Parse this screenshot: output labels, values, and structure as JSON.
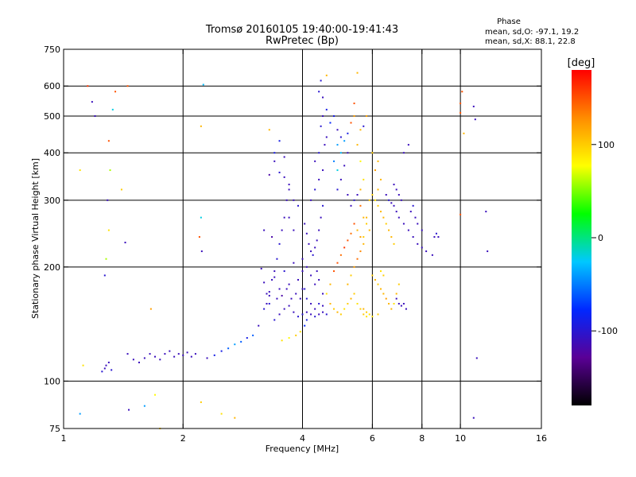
{
  "chart_data": {
    "type": "scatter",
    "title": "Tromsø 20160105 19:40:00-19:41:43",
    "subtitle": "RwPretec (Bp)",
    "xlabel": "Frequency [MHz]",
    "ylabel": "Stationary phase Virtual Height [km]",
    "x_scale": "log",
    "y_scale": "log",
    "xlim": [
      1,
      16
    ],
    "ylim": [
      75,
      750
    ],
    "x_ticks": [
      1,
      2,
      4,
      6,
      8,
      10,
      16
    ],
    "y_ticks": [
      75,
      100,
      200,
      300,
      400,
      500,
      600,
      750
    ],
    "x_gridlines": [
      2,
      4,
      6,
      8,
      10
    ],
    "y_gridlines": [
      100,
      200,
      300,
      400,
      500,
      600
    ],
    "grid": true,
    "stats_title": "Phase",
    "stats": [
      "mean, sd,O: -97.1, 19.2",
      "mean, sd,X:  88.1, 22.8"
    ],
    "colorbar": {
      "label": "[deg]",
      "range": [
        -180,
        180
      ],
      "ticks": [
        100,
        0,
        -100
      ],
      "colormap": "rainbow",
      "colors": [
        "#000000",
        "#5a0096",
        "#0028ff",
        "#00c8ff",
        "#00ff00",
        "#ffff00",
        "#ff8c00",
        "#ff0000"
      ]
    },
    "point_columns": [
      "freq_MHz",
      "height_km",
      "phase_deg"
    ],
    "points": [
      [
        1.1,
        82,
        -40
      ],
      [
        1.12,
        110,
        90
      ],
      [
        1.1,
        360,
        90
      ],
      [
        1.18,
        545,
        -110
      ],
      [
        1.2,
        500,
        -110
      ],
      [
        1.15,
        600,
        160
      ],
      [
        1.25,
        106,
        -100
      ],
      [
        1.27,
        108,
        -110
      ],
      [
        1.28,
        110,
        -110
      ],
      [
        1.3,
        112,
        -110
      ],
      [
        1.32,
        107,
        -100
      ],
      [
        1.27,
        190,
        -100
      ],
      [
        1.28,
        210,
        60
      ],
      [
        1.3,
        250,
        90
      ],
      [
        1.29,
        300,
        -110
      ],
      [
        1.31,
        360,
        60
      ],
      [
        1.3,
        430,
        150
      ],
      [
        1.33,
        520,
        -20
      ],
      [
        1.35,
        580,
        150
      ],
      [
        1.45,
        600,
        150
      ],
      [
        1.4,
        320,
        100
      ],
      [
        1.43,
        232,
        -110
      ],
      [
        1.45,
        118,
        -110
      ],
      [
        1.46,
        84,
        -110
      ],
      [
        1.5,
        114,
        -110
      ],
      [
        1.55,
        112,
        -110
      ],
      [
        1.6,
        115,
        -110
      ],
      [
        1.65,
        118,
        -110
      ],
      [
        1.7,
        116,
        -110
      ],
      [
        1.75,
        114,
        -110
      ],
      [
        1.8,
        118,
        -110
      ],
      [
        1.85,
        120,
        -110
      ],
      [
        1.9,
        116,
        -110
      ],
      [
        1.95,
        118,
        -110
      ],
      [
        2.0,
        117,
        -110
      ],
      [
        2.05,
        119,
        -110
      ],
      [
        2.1,
        116,
        -110
      ],
      [
        2.15,
        118,
        -110
      ],
      [
        2.25,
        605,
        -30
      ],
      [
        2.22,
        470,
        110
      ],
      [
        2.22,
        270,
        -20
      ],
      [
        2.2,
        240,
        150
      ],
      [
        2.23,
        220,
        -110
      ],
      [
        2.22,
        88,
        100
      ],
      [
        2.3,
        115,
        -110
      ],
      [
        2.4,
        117,
        -90
      ],
      [
        2.5,
        120,
        -90
      ],
      [
        2.6,
        122,
        -60
      ],
      [
        2.7,
        125,
        -40
      ],
      [
        2.8,
        127,
        -60
      ],
      [
        2.9,
        130,
        -90
      ],
      [
        3.0,
        132,
        -60
      ],
      [
        1.6,
        86,
        -40
      ],
      [
        1.7,
        92,
        80
      ],
      [
        1.75,
        75,
        100
      ],
      [
        1.66,
        155,
        120
      ],
      [
        2.5,
        82,
        90
      ],
      [
        2.7,
        80,
        110
      ],
      [
        3.1,
        140,
        -110
      ],
      [
        3.2,
        155,
        -100
      ],
      [
        3.25,
        160,
        -110
      ],
      [
        3.3,
        172,
        -110
      ],
      [
        3.35,
        185,
        -110
      ],
      [
        3.4,
        195,
        -110
      ],
      [
        3.45,
        210,
        -100
      ],
      [
        3.5,
        230,
        -100
      ],
      [
        3.55,
        250,
        -110
      ],
      [
        3.6,
        270,
        -110
      ],
      [
        3.65,
        300,
        -110
      ],
      [
        3.7,
        330,
        -110
      ],
      [
        3.3,
        350,
        -120
      ],
      [
        3.4,
        380,
        -110
      ],
      [
        3.5,
        355,
        -100
      ],
      [
        3.6,
        345,
        -110
      ],
      [
        3.7,
        320,
        -110
      ],
      [
        3.8,
        300,
        -110
      ],
      [
        3.9,
        290,
        -100
      ],
      [
        3.7,
        270,
        -110
      ],
      [
        3.8,
        250,
        -110
      ],
      [
        3.3,
        460,
        110
      ],
      [
        3.5,
        430,
        -90
      ],
      [
        3.6,
        390,
        -110
      ],
      [
        3.4,
        400,
        -90
      ],
      [
        3.2,
        250,
        -110
      ],
      [
        3.35,
        240,
        -120
      ],
      [
        3.4,
        145,
        -100
      ],
      [
        3.5,
        150,
        -110
      ],
      [
        3.6,
        155,
        -110
      ],
      [
        3.7,
        158,
        -110
      ],
      [
        3.8,
        152,
        -110
      ],
      [
        3.9,
        148,
        -100
      ],
      [
        4.0,
        150,
        -100
      ],
      [
        3.3,
        168,
        -110
      ],
      [
        3.5,
        175,
        -110
      ],
      [
        3.7,
        180,
        -110
      ],
      [
        3.9,
        185,
        -110
      ],
      [
        3.4,
        188,
        -110
      ],
      [
        3.6,
        195,
        -100
      ],
      [
        3.8,
        205,
        -110
      ],
      [
        3.55,
        128,
        90
      ],
      [
        3.7,
        130,
        80
      ],
      [
        3.85,
        132,
        100
      ],
      [
        3.95,
        135,
        90
      ],
      [
        4.05,
        140,
        -80
      ],
      [
        4.1,
        145,
        -90
      ],
      [
        3.2,
        182,
        -110
      ],
      [
        3.25,
        170,
        -110
      ],
      [
        3.3,
        160,
        -100
      ],
      [
        3.15,
        198,
        -110
      ],
      [
        3.45,
        165,
        -110
      ],
      [
        3.55,
        168,
        -120
      ],
      [
        3.65,
        175,
        -110
      ],
      [
        3.75,
        165,
        -110
      ],
      [
        3.85,
        170,
        -110
      ],
      [
        3.95,
        165,
        -110
      ],
      [
        4.1,
        152,
        -110
      ],
      [
        4.2,
        150,
        -110
      ],
      [
        4.3,
        148,
        -100
      ],
      [
        4.4,
        150,
        -110
      ],
      [
        4.5,
        152,
        -110
      ],
      [
        4.6,
        150,
        -100
      ],
      [
        4.1,
        165,
        -100
      ],
      [
        4.2,
        160,
        -110
      ],
      [
        4.3,
        155,
        -110
      ],
      [
        4.0,
        175,
        -110
      ],
      [
        4.05,
        260,
        -110
      ],
      [
        4.1,
        245,
        -110
      ],
      [
        4.15,
        230,
        -110
      ],
      [
        4.2,
        220,
        -110
      ],
      [
        4.25,
        215,
        -100
      ],
      [
        4.3,
        225,
        -110
      ],
      [
        4.35,
        235,
        -110
      ],
      [
        4.4,
        250,
        -110
      ],
      [
        4.45,
        270,
        -110
      ],
      [
        4.5,
        290,
        -100
      ],
      [
        4.2,
        300,
        -110
      ],
      [
        4.3,
        320,
        -100
      ],
      [
        4.4,
        340,
        -110
      ],
      [
        4.5,
        360,
        -110
      ],
      [
        4.3,
        380,
        -110
      ],
      [
        4.4,
        400,
        -100
      ],
      [
        4.55,
        420,
        -110
      ],
      [
        4.6,
        440,
        -110
      ],
      [
        4.45,
        470,
        -100
      ],
      [
        4.5,
        500,
        -110
      ],
      [
        4.6,
        520,
        -90
      ],
      [
        4.5,
        560,
        -110
      ],
      [
        4.45,
        620,
        -100
      ],
      [
        4.6,
        640,
        110
      ],
      [
        4.4,
        580,
        -100
      ],
      [
        4.7,
        480,
        -80
      ],
      [
        4.8,
        500,
        -90
      ],
      [
        4.9,
        460,
        -110
      ],
      [
        5.0,
        440,
        -100
      ],
      [
        4.9,
        420,
        -40
      ],
      [
        5.0,
        400,
        -30
      ],
      [
        4.8,
        380,
        -50
      ],
      [
        4.9,
        360,
        -20
      ],
      [
        5.1,
        430,
        -40
      ],
      [
        5.2,
        450,
        -90
      ],
      [
        5.3,
        480,
        150
      ],
      [
        5.4,
        500,
        120
      ],
      [
        5.2,
        400,
        -110
      ],
      [
        5.1,
        370,
        -110
      ],
      [
        5.0,
        340,
        -110
      ],
      [
        4.9,
        320,
        -100
      ],
      [
        5.2,
        310,
        -110
      ],
      [
        5.3,
        290,
        -110
      ],
      [
        5.4,
        300,
        -100
      ],
      [
        5.5,
        310,
        -110
      ],
      [
        5.6,
        290,
        140
      ],
      [
        5.7,
        270,
        110
      ],
      [
        5.8,
        260,
        100
      ],
      [
        5.9,
        250,
        110
      ],
      [
        5.5,
        250,
        110
      ],
      [
        5.6,
        240,
        120
      ],
      [
        5.7,
        230,
        110
      ],
      [
        5.4,
        260,
        150
      ],
      [
        5.3,
        245,
        140
      ],
      [
        5.2,
        235,
        150
      ],
      [
        5.1,
        225,
        160
      ],
      [
        5.0,
        215,
        140
      ],
      [
        4.9,
        205,
        150
      ],
      [
        4.8,
        195,
        150
      ],
      [
        4.7,
        180,
        110
      ],
      [
        4.6,
        170,
        90
      ],
      [
        4.7,
        160,
        110
      ],
      [
        4.8,
        155,
        100
      ],
      [
        4.9,
        152,
        110
      ],
      [
        5.0,
        150,
        100
      ],
      [
        5.1,
        155,
        90
      ],
      [
        5.2,
        160,
        100
      ],
      [
        5.3,
        165,
        110
      ],
      [
        5.4,
        170,
        100
      ],
      [
        5.5,
        160,
        90
      ],
      [
        5.6,
        155,
        100
      ],
      [
        5.7,
        150,
        100
      ],
      [
        5.8,
        148,
        90
      ],
      [
        5.2,
        180,
        110
      ],
      [
        5.3,
        190,
        100
      ],
      [
        5.4,
        200,
        120
      ],
      [
        5.5,
        210,
        140
      ],
      [
        5.6,
        220,
        130
      ],
      [
        5.7,
        240,
        100
      ],
      [
        5.8,
        270,
        110
      ],
      [
        5.9,
        300,
        100
      ],
      [
        5.6,
        320,
        110
      ],
      [
        5.7,
        340,
        90
      ],
      [
        5.6,
        380,
        80
      ],
      [
        5.5,
        420,
        110
      ],
      [
        5.6,
        460,
        110
      ],
      [
        5.7,
        470,
        -100
      ],
      [
        5.8,
        500,
        120
      ],
      [
        5.5,
        650,
        110
      ],
      [
        5.4,
        540,
        150
      ],
      [
        4.3,
        180,
        -110
      ],
      [
        4.4,
        185,
        -110
      ],
      [
        4.5,
        170,
        -110
      ],
      [
        4.4,
        160,
        -100
      ],
      [
        4.5,
        158,
        -110
      ],
      [
        4.2,
        190,
        -110
      ],
      [
        4.35,
        195,
        -110
      ],
      [
        4.0,
        195,
        -110
      ],
      [
        4.1,
        200,
        -110
      ],
      [
        4.0,
        210,
        -110
      ],
      [
        4.05,
        175,
        -100
      ],
      [
        6.0,
        310,
        100
      ],
      [
        6.1,
        300,
        90
      ],
      [
        6.2,
        290,
        100
      ],
      [
        6.3,
        280,
        110
      ],
      [
        6.4,
        270,
        110
      ],
      [
        6.5,
        260,
        100
      ],
      [
        6.6,
        250,
        110
      ],
      [
        6.7,
        240,
        110
      ],
      [
        6.8,
        230,
        100
      ],
      [
        6.2,
        320,
        110
      ],
      [
        6.3,
        340,
        110
      ],
      [
        6.1,
        360,
        120
      ],
      [
        6.2,
        380,
        110
      ],
      [
        6.0,
        400,
        100
      ],
      [
        6.0,
        190,
        100
      ],
      [
        6.1,
        185,
        110
      ],
      [
        6.2,
        180,
        100
      ],
      [
        6.3,
        175,
        110
      ],
      [
        6.4,
        170,
        110
      ],
      [
        6.5,
        165,
        120
      ],
      [
        6.6,
        160,
        110
      ],
      [
        6.7,
        155,
        110
      ],
      [
        6.8,
        160,
        90
      ],
      [
        6.9,
        170,
        110
      ],
      [
        7.0,
        180,
        100
      ],
      [
        6.9,
        165,
        -110
      ],
      [
        7.0,
        160,
        -110
      ],
      [
        7.1,
        158,
        -110
      ],
      [
        7.2,
        160,
        -110
      ],
      [
        7.3,
        155,
        -110
      ],
      [
        6.5,
        310,
        -110
      ],
      [
        6.6,
        300,
        -100
      ],
      [
        6.7,
        295,
        -110
      ],
      [
        6.8,
        290,
        -110
      ],
      [
        6.9,
        280,
        -110
      ],
      [
        7.0,
        270,
        -110
      ],
      [
        7.2,
        260,
        -110
      ],
      [
        7.4,
        250,
        -110
      ],
      [
        7.6,
        240,
        -110
      ],
      [
        7.8,
        230,
        -110
      ],
      [
        8.0,
        225,
        -110
      ],
      [
        8.2,
        220,
        -110
      ],
      [
        8.5,
        215,
        -110
      ],
      [
        8.6,
        240,
        -110
      ],
      [
        8.7,
        245,
        -100
      ],
      [
        8.8,
        240,
        -110
      ],
      [
        7.5,
        280,
        -110
      ],
      [
        7.6,
        290,
        -100
      ],
      [
        7.7,
        270,
        -110
      ],
      [
        7.8,
        260,
        -110
      ],
      [
        8.0,
        250,
        -110
      ],
      [
        7.0,
        310,
        -110
      ],
      [
        7.1,
        300,
        -110
      ],
      [
        6.8,
        330,
        -110
      ],
      [
        6.9,
        320,
        -110
      ],
      [
        7.2,
        400,
        -110
      ],
      [
        7.4,
        420,
        -110
      ],
      [
        10.0,
        540,
        150
      ],
      [
        10.1,
        580,
        150
      ],
      [
        10.2,
        450,
        110
      ],
      [
        10.0,
        275,
        150
      ],
      [
        10.0,
        510,
        150
      ],
      [
        10.8,
        530,
        -110
      ],
      [
        10.9,
        490,
        -110
      ],
      [
        10.8,
        80,
        -110
      ],
      [
        11.0,
        115,
        -110
      ],
      [
        11.6,
        280,
        -110
      ],
      [
        11.7,
        220,
        -110
      ],
      [
        6.3,
        195,
        90
      ],
      [
        6.4,
        190,
        100
      ],
      [
        6.2,
        150,
        100
      ],
      [
        6.0,
        148,
        90
      ],
      [
        5.9,
        150,
        90
      ],
      [
        5.8,
        152,
        100
      ],
      [
        5.7,
        155,
        110
      ]
    ]
  }
}
